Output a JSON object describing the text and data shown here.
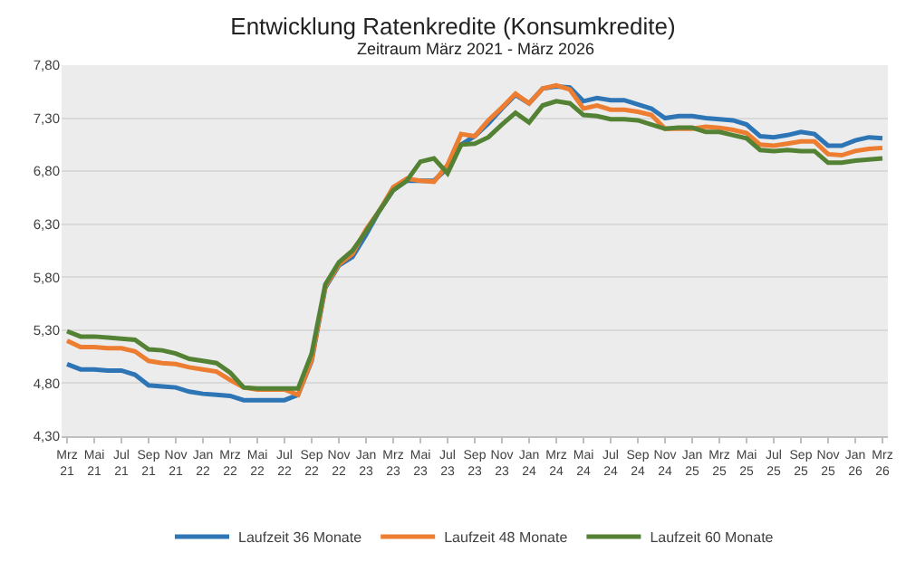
{
  "chart_data": {
    "type": "line",
    "title": "Entwicklung Ratenkredite (Konsumkredite)",
    "subtitle": "Zeitraum März 2021 - März 2026",
    "categories": [
      "Mrz 21",
      null,
      "Mai 21",
      null,
      "Jul 21",
      null,
      "Sep 21",
      null,
      "Nov 21",
      null,
      "Jan 22",
      null,
      "Mrz 22",
      null,
      "Mai 22",
      null,
      "Jul 22",
      null,
      "Sep 22",
      null,
      "Nov 22",
      null,
      "Jan 23",
      null,
      "Mrz 23",
      null,
      "Mai 23",
      null,
      "Jul 23",
      null,
      "Sep 23",
      null,
      "Nov 23",
      null,
      "Jan 24",
      null,
      "Mrz 24",
      null,
      "Mai 24",
      null,
      "Jul 24",
      null,
      "Sep 24",
      null,
      "Nov 24",
      null,
      "Jan 25",
      null,
      "Mrz 25",
      null,
      "Mai 25",
      null,
      "Jul 25",
      null,
      "Sep 25",
      null,
      "Nov 25",
      null,
      "Jan 26",
      null,
      "Mrz 26"
    ],
    "series": [
      {
        "name": "Laufzeit 36 Monate",
        "color": "#2e75b6",
        "values": [
          4.98,
          4.93,
          4.93,
          4.92,
          4.92,
          4.88,
          4.78,
          4.77,
          4.76,
          4.72,
          4.7,
          4.69,
          4.68,
          4.64,
          4.64,
          4.64,
          4.64,
          4.69,
          5.01,
          5.7,
          5.91,
          5.99,
          6.2,
          6.43,
          6.62,
          6.71,
          6.71,
          6.71,
          6.83,
          7.05,
          7.13,
          7.25,
          7.39,
          7.52,
          7.44,
          7.58,
          7.6,
          7.59,
          7.46,
          7.49,
          7.47,
          7.47,
          7.43,
          7.39,
          7.3,
          7.32,
          7.32,
          7.3,
          7.29,
          7.28,
          7.24,
          7.13,
          7.12,
          7.14,
          7.17,
          7.15,
          7.04,
          7.04,
          7.09,
          7.12,
          7.11
        ]
      },
      {
        "name": "Laufzeit 48 Monate",
        "color": "#ed7d31",
        "values": [
          5.2,
          5.14,
          5.14,
          5.13,
          5.13,
          5.1,
          5.01,
          4.99,
          4.98,
          4.95,
          4.93,
          4.91,
          4.83,
          4.76,
          4.74,
          4.74,
          4.74,
          4.69,
          5.02,
          5.71,
          5.92,
          6.02,
          6.25,
          6.43,
          6.65,
          6.73,
          6.71,
          6.7,
          6.86,
          7.15,
          7.13,
          7.28,
          7.4,
          7.53,
          7.44,
          7.58,
          7.61,
          7.57,
          7.39,
          7.42,
          7.38,
          7.38,
          7.36,
          7.33,
          7.2,
          7.2,
          7.2,
          7.22,
          7.21,
          7.19,
          7.16,
          7.05,
          7.04,
          7.06,
          7.08,
          7.08,
          6.96,
          6.95,
          6.99,
          7.01,
          7.02
        ]
      },
      {
        "name": "Laufzeit 60 Monate",
        "color": "#548235",
        "values": [
          5.29,
          5.24,
          5.24,
          5.23,
          5.22,
          5.21,
          5.12,
          5.11,
          5.08,
          5.03,
          5.01,
          4.99,
          4.9,
          4.76,
          4.75,
          4.75,
          4.75,
          4.75,
          5.08,
          5.73,
          5.94,
          6.05,
          6.23,
          6.43,
          6.62,
          6.71,
          6.89,
          6.92,
          6.78,
          7.05,
          7.06,
          7.12,
          7.24,
          7.35,
          7.26,
          7.42,
          7.46,
          7.44,
          7.33,
          7.32,
          7.29,
          7.29,
          7.28,
          7.24,
          7.2,
          7.21,
          7.21,
          7.17,
          7.17,
          7.14,
          7.11,
          7.0,
          6.99,
          7.0,
          6.99,
          6.99,
          6.88,
          6.88,
          6.9,
          6.91,
          6.92
        ]
      }
    ],
    "ylim": [
      4.3,
      7.8
    ],
    "yticks": [
      {
        "value": 4.3,
        "label": "4,30"
      },
      {
        "value": 4.8,
        "label": "4,80"
      },
      {
        "value": 5.3,
        "label": "5,30"
      },
      {
        "value": 5.8,
        "label": "5,80"
      },
      {
        "value": 6.3,
        "label": "6,30"
      },
      {
        "value": 6.8,
        "label": "6,80"
      },
      {
        "value": 7.3,
        "label": "7,30"
      },
      {
        "value": 7.8,
        "label": "7,80"
      }
    ],
    "grid": "y",
    "legend": "bottom",
    "marker": "none",
    "line_style": "solid"
  }
}
